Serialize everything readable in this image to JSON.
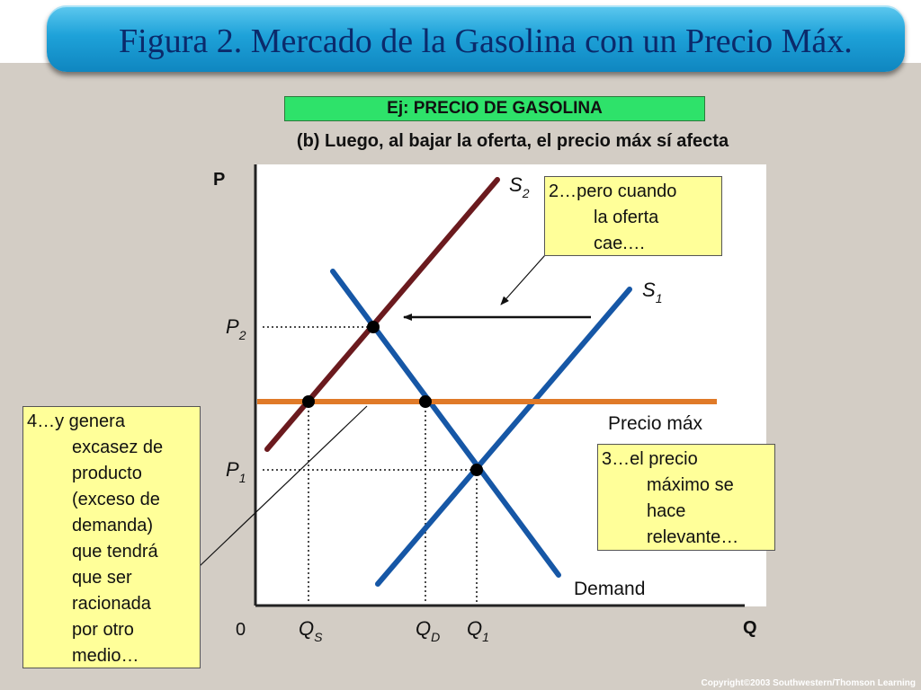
{
  "header": {
    "title": "Figura 2. Mercado de la Gasolina con un Precio Máx."
  },
  "label_box": {
    "text": "Ej: PRECIO DE GASOLINA"
  },
  "subtitle": "(b) Luego, al bajar la oferta, el precio máx sí afecta",
  "axes": {
    "y_label": "P",
    "x_label": "Q",
    "origin": "0",
    "p2": {
      "main": "P",
      "sub": "2"
    },
    "p1": {
      "main": "P",
      "sub": "1"
    },
    "qs": {
      "main": "Q",
      "sub": "S"
    },
    "qd": {
      "main": "Q",
      "sub": "D"
    },
    "q1": {
      "main": "Q",
      "sub": "1"
    }
  },
  "curves": {
    "s2": {
      "main": "S",
      "sub": "2",
      "color": "#6b1a1e"
    },
    "s1": {
      "main": "S",
      "sub": "1",
      "color": "#1657a6"
    },
    "demand": {
      "label": "Demand",
      "color": "#1657a6"
    },
    "price_ceiling": {
      "label": "Precio máx",
      "color": "#e07a28"
    }
  },
  "notes": {
    "note2": [
      "2…pero cuando",
      "la oferta",
      "cae.…"
    ],
    "note3": [
      "3…el precio",
      "máximo se",
      "hace",
      "relevante…"
    ],
    "note4": [
      "4…y genera",
      "excasez de",
      "producto",
      "(exceso de",
      "demanda)",
      "que tendrá",
      "que ser",
      "racionada",
      "por otro",
      "medio…"
    ]
  },
  "footer": "Copyright©2003  Southwestern/Thomson Learning"
}
